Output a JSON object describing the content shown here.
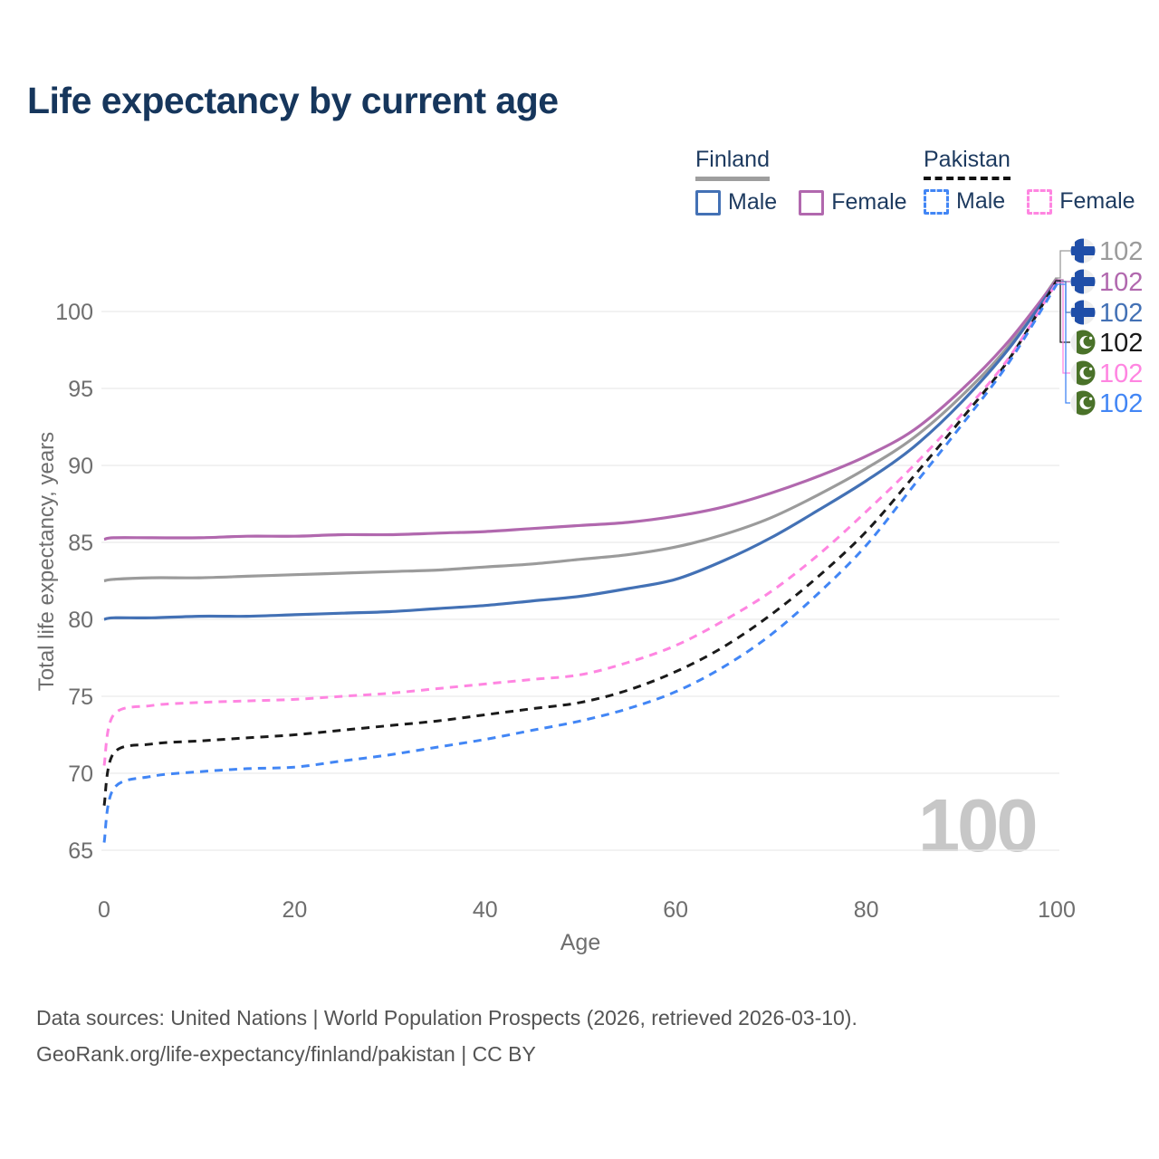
{
  "title": "Life expectancy by current age",
  "legend": {
    "finland": {
      "label": "Finland",
      "male": "Male",
      "female": "Female"
    },
    "pakistan": {
      "label": "Pakistan",
      "male": "Male",
      "female": "Female"
    }
  },
  "watermark": "100",
  "footer": {
    "line1": "Data sources: United Nations | World Population Prospects (2026, retrieved 2026-03-10).",
    "line2": "GeoRank.org/life-expectancy/finland/pakistan | CC BY"
  },
  "colors": {
    "title_text": "#16365c",
    "legend_text": "#1d3a5f",
    "axis_text": "#6e6e6e",
    "grid": "#e9e9e9",
    "watermark": "#c7c7c7",
    "finland_total": "#9b9b9b",
    "finland_female": "#b168ae",
    "finland_male": "#4371b5",
    "pakistan_total": "#1a1a1a",
    "pakistan_female": "#ff85e1",
    "pakistan_male": "#4286f5",
    "finland_flag_blue": "#1f4ea8",
    "flag_background": "#ededed",
    "pakistan_flag_green": "#4a7229"
  },
  "chart_data": {
    "type": "line",
    "title": "Life expectancy by current age",
    "xlabel": "Age",
    "ylabel": "Total life expectancy, years",
    "x_ticks": [
      0,
      20,
      40,
      60,
      80,
      100
    ],
    "y_ticks": [
      65,
      70,
      75,
      80,
      85,
      90,
      95,
      100
    ],
    "xlim": [
      0,
      100
    ],
    "ylim": [
      63.5,
      102.5
    ],
    "grid": "horizontal",
    "legend_position": "top-right",
    "x": [
      0,
      1,
      5,
      10,
      15,
      20,
      25,
      30,
      35,
      40,
      45,
      50,
      55,
      60,
      65,
      70,
      75,
      80,
      85,
      90,
      95,
      100
    ],
    "series": [
      {
        "name": "Finland total",
        "country": "Finland",
        "sex": "both",
        "style": "solid",
        "color": "#9b9b9b",
        "end_label": "102",
        "values": [
          82.5,
          82.6,
          82.7,
          82.7,
          82.8,
          82.9,
          83.0,
          83.1,
          83.2,
          83.4,
          83.6,
          83.9,
          84.2,
          84.7,
          85.5,
          86.6,
          88.1,
          89.8,
          91.8,
          94.5,
          97.8,
          102.0
        ]
      },
      {
        "name": "Finland female",
        "country": "Finland",
        "sex": "female",
        "style": "solid",
        "color": "#b168ae",
        "end_label": "102",
        "values": [
          85.2,
          85.3,
          85.3,
          85.3,
          85.4,
          85.4,
          85.5,
          85.5,
          85.6,
          85.7,
          85.9,
          86.1,
          86.3,
          86.7,
          87.3,
          88.2,
          89.3,
          90.6,
          92.3,
          94.9,
          98.1,
          102.0
        ]
      },
      {
        "name": "Finland male",
        "country": "Finland",
        "sex": "male",
        "style": "solid",
        "color": "#4371b5",
        "end_label": "102",
        "values": [
          80.0,
          80.1,
          80.1,
          80.2,
          80.2,
          80.3,
          80.4,
          80.5,
          80.7,
          80.9,
          81.2,
          81.5,
          82.0,
          82.6,
          83.8,
          85.3,
          87.1,
          89.0,
          91.2,
          94.1,
          97.6,
          102.0
        ]
      },
      {
        "name": "Pakistan total",
        "country": "Pakistan",
        "sex": "both",
        "style": "dashed",
        "color": "#1a1a1a",
        "end_label": "102",
        "values": [
          67.9,
          71.3,
          71.9,
          72.1,
          72.3,
          72.5,
          72.8,
          73.1,
          73.4,
          73.8,
          74.2,
          74.6,
          75.4,
          76.6,
          78.2,
          80.3,
          82.8,
          85.7,
          89.3,
          93.0,
          96.9,
          101.9
        ]
      },
      {
        "name": "Pakistan female",
        "country": "Pakistan",
        "sex": "female",
        "style": "dashed",
        "color": "#ff85e1",
        "end_label": "102",
        "values": [
          70.5,
          73.8,
          74.4,
          74.6,
          74.7,
          74.8,
          75.0,
          75.2,
          75.5,
          75.8,
          76.1,
          76.4,
          77.2,
          78.3,
          79.9,
          81.8,
          84.2,
          87.0,
          90.0,
          93.3,
          97.0,
          101.9
        ]
      },
      {
        "name": "Pakistan male",
        "country": "Pakistan",
        "sex": "male",
        "style": "dashed",
        "color": "#4286f5",
        "end_label": "102",
        "values": [
          65.5,
          69.0,
          69.8,
          70.1,
          70.3,
          70.4,
          70.8,
          71.2,
          71.7,
          72.2,
          72.8,
          73.4,
          74.2,
          75.3,
          76.9,
          79.0,
          81.7,
          84.8,
          88.7,
          92.6,
          96.7,
          101.9
        ]
      }
    ]
  }
}
